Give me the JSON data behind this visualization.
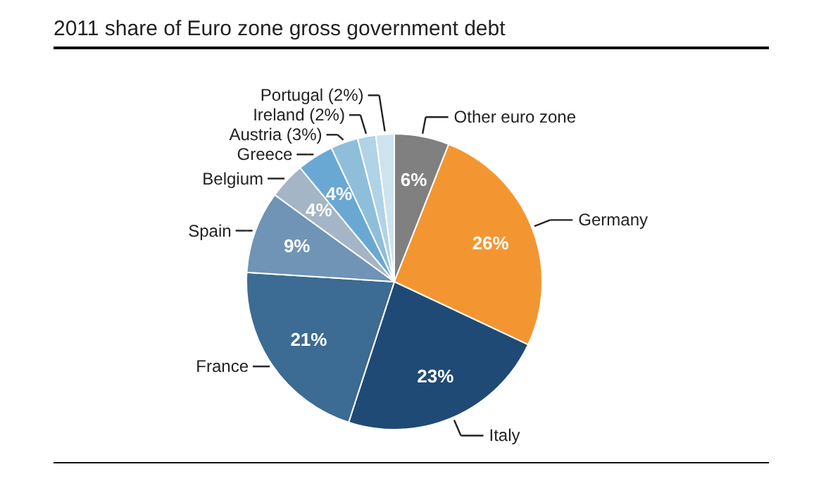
{
  "chart_data": {
    "type": "pie",
    "title": "2011 share of Euro zone gross government debt",
    "categories": [
      "Other euro zone",
      "Germany",
      "Italy",
      "France",
      "Spain",
      "Belgium",
      "Greece",
      "Austria (3%)",
      "Ireland (2%)",
      "Portugal (2%)"
    ],
    "values": [
      6,
      26,
      23,
      21,
      9,
      4,
      4,
      3,
      2,
      2
    ],
    "colors": [
      "#808080",
      "#f39632",
      "#1f4a75",
      "#3c6b93",
      "#6f94b5",
      "#a3b5c6",
      "#6aa8d4",
      "#8fbedb",
      "#b0d3e8",
      "#cde3ef"
    ],
    "value_labels": [
      "6%",
      "26%",
      "23%",
      "21%",
      "9%",
      "4%",
      "4%",
      null,
      null,
      null
    ]
  }
}
